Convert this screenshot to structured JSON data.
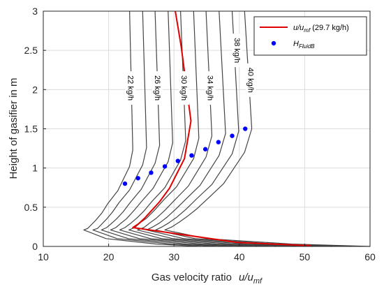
{
  "chart_data": {
    "type": "line",
    "xlabel": "Gas velocity ratio",
    "xlabel_symbol": {
      "base": "u/u",
      "sub": "mf"
    },
    "ylabel": "Height of gasifier in m",
    "xlim": [
      10,
      60
    ],
    "ylim": [
      0,
      3
    ],
    "xticks": [
      10,
      20,
      30,
      40,
      50,
      60
    ],
    "yticks": [
      0,
      0.5,
      1,
      1.5,
      2,
      2.5,
      3
    ],
    "grid": true,
    "legend_position": "top-right",
    "colors": {
      "grey": "#444444",
      "red": "#e00000",
      "blue": "#0000ff",
      "grid": "#dcdcdc"
    },
    "legend": [
      {
        "kind": "line",
        "label_base": "u/u",
        "label_sub": "mf",
        "label_tail": " (29.7 kg/h)",
        "color": "#e00000"
      },
      {
        "kind": "marker",
        "label_base": "H",
        "label_sub": "FluidB",
        "color": "#0000ff"
      }
    ],
    "grey_series": [
      {
        "x": [
          40.8,
          41.9,
          40.8,
          37.6,
          35.3,
          33.5,
          32.0,
          30.8,
          29.7,
          28.6,
          34.9,
          48.0,
          60.0
        ],
        "y": [
          3.0,
          1.5,
          1.2,
          0.8,
          0.62,
          0.48,
          0.38,
          0.31,
          0.25,
          0.21,
          0.1,
          0.03,
          0.0
        ]
      },
      {
        "x": [
          38.9,
          39.9,
          38.9,
          35.8,
          33.5,
          31.8,
          30.4,
          29.2,
          28.2,
          27.2,
          33.2,
          45.7,
          57.1
        ],
        "y": [
          3.0,
          1.47,
          1.18,
          0.79,
          0.61,
          0.47,
          0.37,
          0.3,
          0.25,
          0.21,
          0.1,
          0.03,
          0.0
        ]
      },
      {
        "x": [
          36.9,
          37.9,
          36.9,
          34.0,
          31.8,
          30.2,
          28.9,
          27.8,
          26.8,
          25.8,
          31.5,
          43.4,
          54.2
        ],
        "y": [
          3.0,
          1.44,
          1.16,
          0.78,
          0.6,
          0.47,
          0.37,
          0.3,
          0.25,
          0.21,
          0.1,
          0.03,
          0.0
        ]
      },
      {
        "x": [
          34.9,
          35.8,
          34.9,
          32.2,
          30.1,
          28.6,
          27.3,
          26.3,
          25.4,
          24.4,
          29.8,
          41.1,
          51.3
        ],
        "y": [
          3.0,
          1.41,
          1.14,
          0.77,
          0.59,
          0.46,
          0.36,
          0.3,
          0.24,
          0.21,
          0.1,
          0.03,
          0.0
        ]
      },
      {
        "x": [
          33.0,
          33.8,
          33.0,
          30.4,
          28.4,
          27.0,
          25.8,
          24.8,
          24.0,
          23.1,
          28.1,
          38.8,
          48.5
        ],
        "y": [
          3.0,
          1.38,
          1.12,
          0.76,
          0.59,
          0.46,
          0.36,
          0.3,
          0.24,
          0.21,
          0.1,
          0.03,
          0.0
        ]
      },
      {
        "x": [
          31.0,
          31.8,
          31.0,
          28.6,
          26.7,
          25.4,
          24.3,
          23.3,
          22.5,
          21.7,
          26.4,
          36.5,
          45.6
        ],
        "y": [
          3.0,
          1.35,
          1.1,
          0.75,
          0.58,
          0.45,
          0.36,
          0.29,
          0.24,
          0.21,
          0.1,
          0.03,
          0.0
        ]
      },
      {
        "x": [
          29.1,
          29.8,
          29.1,
          26.8,
          25.0,
          23.8,
          22.7,
          21.8,
          21.1,
          20.3,
          24.7,
          34.2,
          42.7
        ],
        "y": [
          3.0,
          1.32,
          1.08,
          0.74,
          0.57,
          0.45,
          0.35,
          0.29,
          0.24,
          0.21,
          0.1,
          0.03,
          0.0
        ]
      },
      {
        "x": [
          27.1,
          27.8,
          27.1,
          25.0,
          23.3,
          22.2,
          21.2,
          20.4,
          19.7,
          18.9,
          23.0,
          31.9,
          39.8
        ],
        "y": [
          3.0,
          1.29,
          1.06,
          0.73,
          0.56,
          0.44,
          0.35,
          0.29,
          0.24,
          0.21,
          0.1,
          0.03,
          0.0
        ]
      },
      {
        "x": [
          25.2,
          25.8,
          25.2,
          23.2,
          21.6,
          20.6,
          19.7,
          18.9,
          18.3,
          17.6,
          21.3,
          29.6,
          37.0
        ],
        "y": [
          3.0,
          1.26,
          1.04,
          0.72,
          0.56,
          0.44,
          0.35,
          0.28,
          0.23,
          0.21,
          0.1,
          0.03,
          0.0
        ]
      },
      {
        "x": [
          23.2,
          23.7,
          23.2,
          21.4,
          19.9,
          19.0,
          18.1,
          17.4,
          16.8,
          16.2,
          19.6,
          27.3,
          34.1
        ],
        "y": [
          3.0,
          1.23,
          1.02,
          0.71,
          0.55,
          0.43,
          0.34,
          0.28,
          0.23,
          0.21,
          0.1,
          0.03,
          0.0
        ]
      }
    ],
    "red_series": {
      "name": "u/umf (29.7 kg/h)",
      "x": [
        30.2,
        31.1,
        32.6,
        31.6,
        29.3,
        27.8,
        26.5,
        25.5,
        24.6,
        23.7,
        28.8,
        39.8,
        51.0
      ],
      "y": [
        3.0,
        2.55,
        1.6,
        1.12,
        0.74,
        0.57,
        0.45,
        0.36,
        0.29,
        0.24,
        0.18,
        0.05,
        0.01
      ]
    },
    "marker_series": {
      "name": "HFluidB",
      "x": [
        22.5,
        24.5,
        26.5,
        28.6,
        30.6,
        32.7,
        34.8,
        36.8,
        38.9,
        40.9
      ],
      "y": [
        0.8,
        0.87,
        0.94,
        1.02,
        1.09,
        1.16,
        1.24,
        1.33,
        1.41,
        1.5
      ]
    },
    "inline_labels": [
      {
        "text": "22 kg/h",
        "x": 23.4,
        "y": 2.02
      },
      {
        "text": "26 kg/h",
        "x": 27.5,
        "y": 2.02
      },
      {
        "text": "30 kg/h",
        "x": 31.6,
        "y": 2.02
      },
      {
        "text": "34 kg/h",
        "x": 35.6,
        "y": 2.02
      },
      {
        "text": "38 kg/h",
        "x": 39.7,
        "y": 2.5
      },
      {
        "text": "40 kg/h",
        "x": 41.8,
        "y": 2.12
      }
    ]
  }
}
